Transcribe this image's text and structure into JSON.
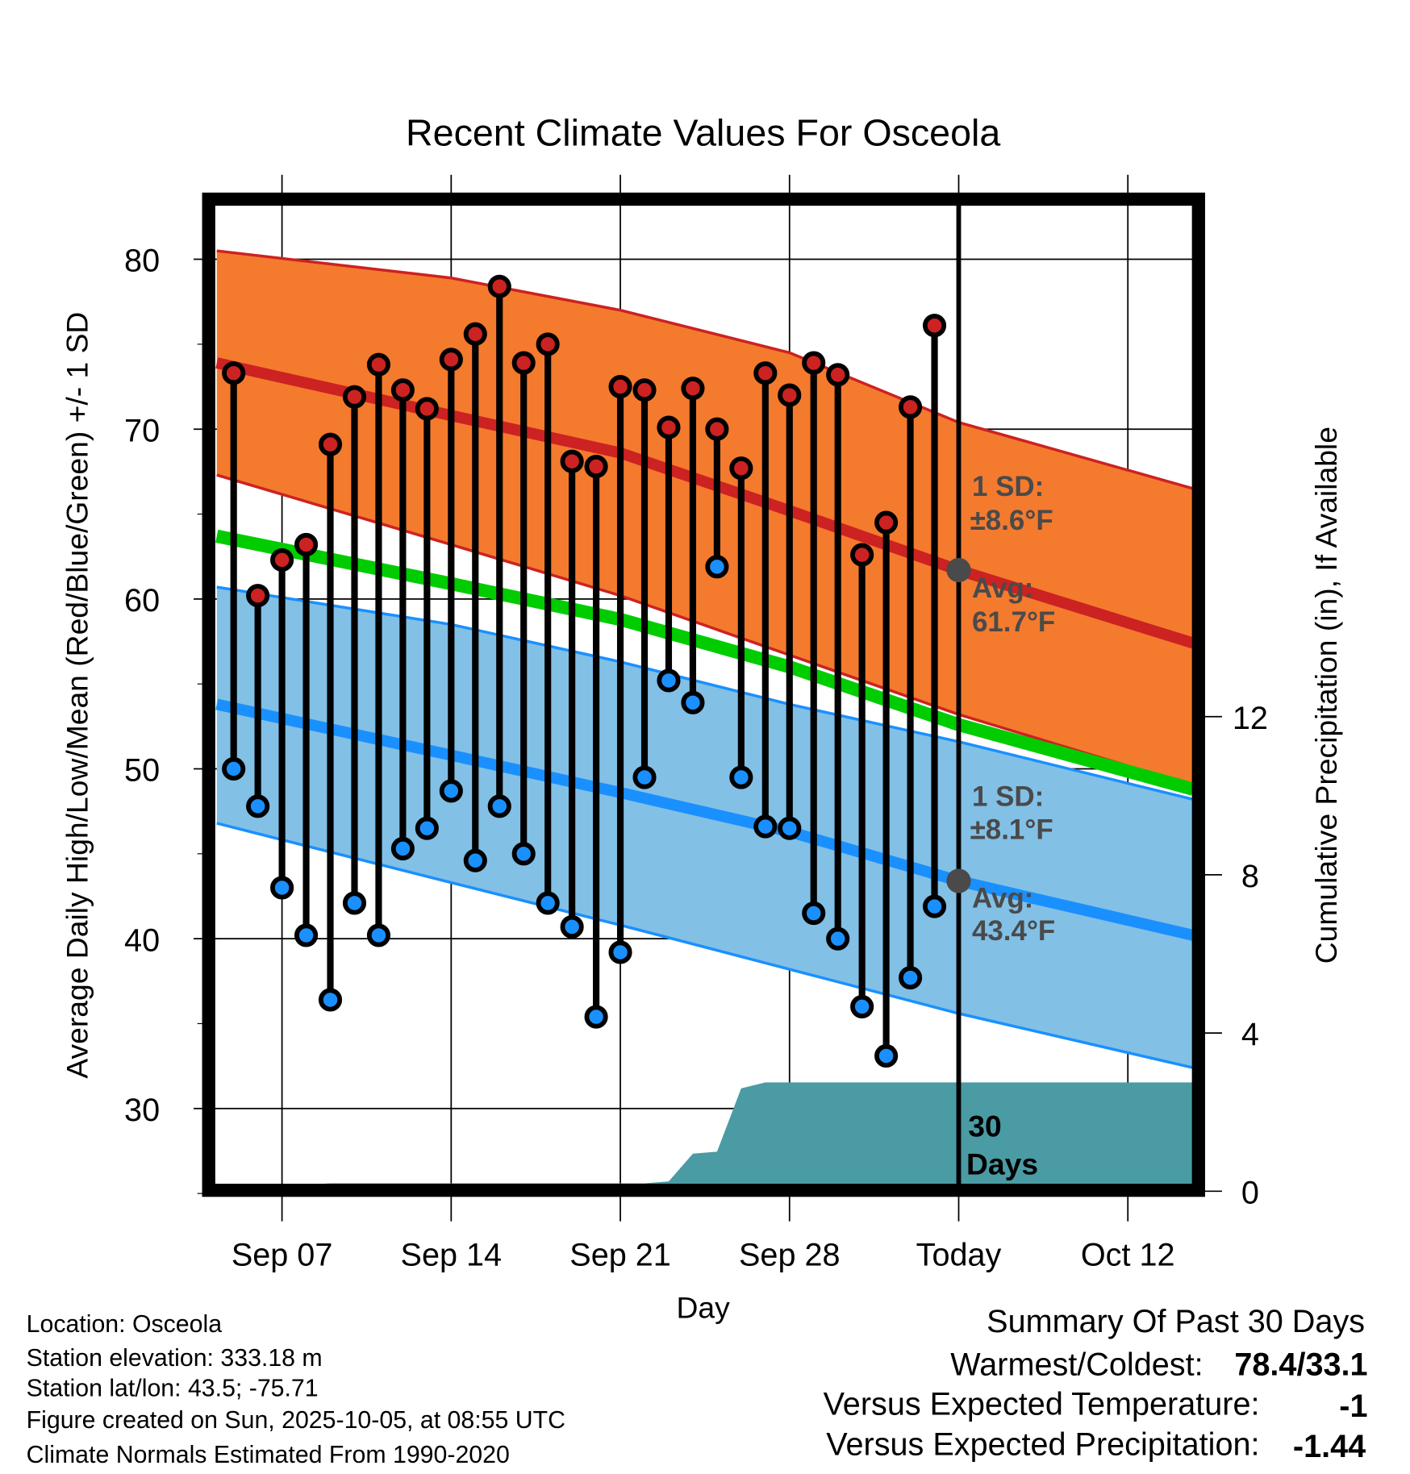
{
  "chart_data": {
    "type": "line",
    "title": "Recent Climate Values For Osceola",
    "xlabel": "Day",
    "ylabel": "Average Daily High/Low/Mean (Red/Blue/Green) +/- 1 SD",
    "y2label": "Cumulative Precipitation (in), If Available",
    "ylim": [
      25,
      84
    ],
    "y_ticks": [
      30,
      40,
      50,
      60,
      70,
      80
    ],
    "y2lim": [
      0,
      14
    ],
    "y2_ticks": [
      0,
      4,
      8,
      12
    ],
    "x_day_offset_note": "x values are days since Sep 01",
    "x_ticks": [
      {
        "x": 6,
        "label": "Sep 07"
      },
      {
        "x": 13,
        "label": "Sep 14"
      },
      {
        "x": 20,
        "label": "Sep 21"
      },
      {
        "x": 27,
        "label": "Sep 28"
      },
      {
        "x": 34,
        "label": "Today"
      },
      {
        "x": 41,
        "label": "Oct 12"
      }
    ],
    "xlim": [
      3.3,
      43.7
    ],
    "today_x": 34,
    "grid": true,
    "days": [
      4,
      5,
      6,
      7,
      8,
      9,
      10,
      11,
      12,
      13,
      14,
      15,
      16,
      17,
      18,
      19,
      20,
      21,
      22,
      23,
      24,
      25,
      26,
      27,
      28,
      29,
      30,
      31,
      32,
      33
    ],
    "highs": [
      73.3,
      60.2,
      62.3,
      63.2,
      69.1,
      71.9,
      73.8,
      72.3,
      71.2,
      74.1,
      75.6,
      78.4,
      73.9,
      75.0,
      68.1,
      67.8,
      72.5,
      72.3,
      70.1,
      72.4,
      70.0,
      67.7,
      73.3,
      72.0,
      73.9,
      73.2,
      62.6,
      64.5,
      71.3,
      76.1
    ],
    "lows": [
      50.0,
      47.8,
      43.0,
      40.2,
      36.4,
      42.1,
      40.2,
      45.3,
      46.5,
      48.7,
      44.6,
      47.8,
      45.0,
      42.1,
      40.7,
      35.4,
      39.2,
      49.5,
      55.2,
      53.9,
      61.9,
      49.5,
      46.6,
      46.5,
      41.5,
      40.0,
      36.0,
      33.1,
      37.7,
      41.9
    ],
    "normals_x": [
      3.3,
      13,
      20,
      27,
      34,
      43.7
    ],
    "normal_high": [
      73.9,
      70.8,
      68.6,
      65.2,
      61.7,
      57.4
    ],
    "normal_high_upper": [
      80.5,
      78.9,
      77.0,
      74.5,
      70.4,
      66.5
    ],
    "normal_high_lower": [
      67.3,
      63.2,
      60.2,
      56.7,
      53.2,
      49.0
    ],
    "normal_mean": [
      63.7,
      60.9,
      58.8,
      56.0,
      52.6,
      48.8
    ],
    "normal_low": [
      53.8,
      50.8,
      48.6,
      46.3,
      43.4,
      40.2
    ],
    "normal_low_upper": [
      60.7,
      58.5,
      56.3,
      53.8,
      51.6,
      48.2
    ],
    "normal_low_lower": [
      46.8,
      43.3,
      40.8,
      38.2,
      35.6,
      32.4
    ],
    "precip_x": [
      3.3,
      5.5,
      6.5,
      8,
      21,
      22,
      23,
      24,
      25,
      26,
      43.7
    ],
    "precip_cum": [
      0,
      0,
      0.15,
      0.2,
      0.2,
      0.25,
      0.95,
      1.0,
      2.6,
      2.75,
      2.75
    ],
    "annotations": {
      "high_sd": [
        "1 SD:",
        "±8.6°F"
      ],
      "high_avg": [
        "Avg:",
        "61.7°F"
      ],
      "low_sd": [
        "1 SD:",
        "±8.1°F"
      ],
      "low_avg": [
        "Avg:",
        "43.4°F"
      ],
      "period": [
        "30",
        "Days"
      ]
    },
    "colors": {
      "high_band": "#f47a2e",
      "high_line": "#cc2222",
      "mean": "#00cc00",
      "low_band": "#82c0e6",
      "low_line": "#1a90ff",
      "precip": "#4a9ba4",
      "high_dot": "#cc2222",
      "low_dot": "#1a90ff",
      "marker": "#4a4a4a"
    }
  },
  "footer": {
    "location": "Location: Osceola",
    "elevation": "Station elevation: 333.18 m",
    "latlon": "Station lat/lon: 43.5; -75.71",
    "created": "Figure created on Sun, 2025-10-05, at 08:55 UTC",
    "normals": "Climate Normals Estimated From 1990-2020"
  },
  "summary": {
    "title": "Summary Of Past 30 Days",
    "warm_cold_label": "Warmest/Coldest:",
    "warm_cold_value": "78.4/33.1",
    "temp_label": "Versus Expected Temperature:",
    "temp_value": "-1",
    "temp_color": "#1a90ff",
    "precip_label": "Versus Expected Precipitation:",
    "precip_value": "-1.44",
    "precip_color": "#a0522d"
  }
}
